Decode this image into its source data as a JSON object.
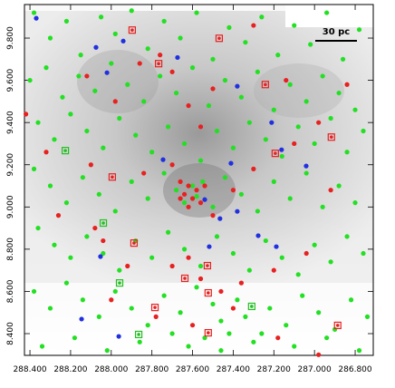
{
  "chart_data": {
    "type": "scatter",
    "annotation": "30 pc",
    "xlim": [
      288.427,
      286.711
    ],
    "ylim": [
      8.297,
      9.959
    ],
    "xticks": [
      {
        "value": 288.4,
        "label": "288.400"
      },
      {
        "value": 288.2,
        "label": "288.200"
      },
      {
        "value": 288.0,
        "label": "288.000"
      },
      {
        "value": 287.8,
        "label": "287.800"
      },
      {
        "value": 287.6,
        "label": "287.600"
      },
      {
        "value": 287.4,
        "label": "287.400"
      },
      {
        "value": 287.2,
        "label": "287.200"
      },
      {
        "value": 287.0,
        "label": "287.000"
      },
      {
        "value": 286.8,
        "label": "286.800"
      }
    ],
    "yticks": [
      {
        "value": 8.4,
        "label": "8.400"
      },
      {
        "value": 8.6,
        "label": "8.600"
      },
      {
        "value": 8.8,
        "label": "8.800"
      },
      {
        "value": 9.0,
        "label": "9.000"
      },
      {
        "value": 9.2,
        "label": "9.200"
      },
      {
        "value": 9.4,
        "label": "9.400"
      },
      {
        "value": 9.6,
        "label": "9.600"
      },
      {
        "value": 9.8,
        "label": "9.800"
      }
    ],
    "series": [
      {
        "color": "#22e022",
        "marker": "circle",
        "x": [
          288.38,
          288.3,
          288.22,
          288.15,
          288.05,
          287.98,
          287.9,
          287.82,
          287.74,
          287.66,
          287.58,
          287.5,
          287.42,
          287.34,
          287.26,
          287.18,
          287.1,
          287.02,
          286.94,
          286.86,
          286.78,
          288.4,
          288.32,
          288.24,
          288.16,
          288.08,
          288.0,
          287.92,
          287.84,
          287.76,
          287.68,
          287.6,
          287.52,
          287.44,
          287.36,
          287.28,
          287.2,
          287.12,
          287.04,
          286.96,
          286.88,
          286.8,
          288.36,
          288.28,
          288.2,
          288.12,
          288.04,
          287.96,
          287.88,
          287.8,
          287.72,
          287.64,
          287.56,
          287.48,
          287.4,
          287.32,
          287.24,
          287.16,
          287.08,
          287.0,
          286.92,
          286.84,
          286.76,
          288.38,
          288.3,
          288.22,
          288.14,
          288.06,
          287.98,
          287.9,
          287.82,
          287.74,
          287.68,
          287.64,
          287.6,
          287.58,
          287.55,
          287.5,
          287.44,
          287.36,
          287.28,
          287.2,
          287.12,
          287.04,
          286.96,
          286.88,
          286.8,
          288.36,
          288.28,
          288.2,
          288.12,
          288.04,
          287.96,
          287.88,
          287.8,
          287.72,
          287.64,
          287.56,
          287.48,
          287.4,
          287.32,
          287.24,
          287.16,
          287.08,
          287.0,
          286.92,
          286.84,
          286.76,
          288.38,
          288.3,
          288.22,
          288.14,
          288.06,
          287.98,
          287.9,
          287.82,
          287.74,
          287.66,
          287.58,
          287.5,
          287.46,
          287.42,
          287.38,
          287.34,
          287.3,
          287.22,
          287.14,
          287.06,
          286.98,
          286.9,
          286.82,
          286.74,
          288.34,
          288.18,
          288.02,
          287.86,
          287.7,
          287.62,
          287.54,
          287.46,
          287.26,
          287.1,
          286.94,
          286.78
        ],
        "y": [
          9.92,
          9.8,
          9.88,
          9.72,
          9.9,
          9.82,
          9.93,
          9.75,
          9.88,
          9.8,
          9.92,
          9.7,
          9.85,
          9.78,
          9.9,
          9.72,
          9.86,
          9.77,
          9.92,
          9.7,
          9.84,
          9.6,
          9.66,
          9.52,
          9.62,
          9.55,
          9.68,
          9.58,
          9.5,
          9.62,
          9.54,
          9.66,
          9.48,
          9.6,
          9.52,
          9.64,
          9.46,
          9.58,
          9.5,
          9.62,
          9.54,
          9.46,
          9.4,
          9.32,
          9.44,
          9.36,
          9.28,
          9.42,
          9.34,
          9.26,
          9.38,
          9.3,
          9.22,
          9.36,
          9.28,
          9.4,
          9.32,
          9.24,
          9.38,
          9.3,
          9.42,
          9.26,
          9.36,
          9.18,
          9.1,
          9.02,
          9.14,
          9.06,
          8.98,
          9.12,
          9.04,
          9.16,
          9.08,
          9.02,
          9.1,
          9.05,
          9.12,
          9.0,
          9.14,
          9.06,
          8.98,
          9.12,
          9.04,
          9.16,
          9.0,
          9.1,
          9.02,
          8.9,
          8.82,
          8.76,
          8.86,
          8.78,
          8.7,
          8.84,
          8.76,
          8.88,
          8.8,
          8.72,
          8.86,
          8.78,
          8.7,
          8.84,
          8.76,
          8.68,
          8.82,
          8.74,
          8.86,
          8.78,
          8.6,
          8.52,
          8.64,
          8.56,
          8.48,
          8.6,
          8.52,
          8.44,
          8.58,
          8.5,
          8.62,
          8.54,
          8.46,
          8.4,
          8.56,
          8.48,
          8.36,
          8.52,
          8.44,
          8.58,
          8.5,
          8.42,
          8.56,
          8.48,
          8.34,
          8.38,
          8.32,
          8.36,
          8.4,
          8.34,
          8.38,
          8.32,
          8.4,
          8.34,
          8.38,
          8.32
        ]
      },
      {
        "color": "#e82020",
        "marker": "circle",
        "x": [
          288.42,
          288.12,
          287.98,
          287.86,
          287.76,
          287.7,
          287.62,
          287.56,
          287.5,
          287.3,
          287.14,
          286.98,
          286.84,
          288.32,
          288.1,
          287.84,
          287.7,
          287.66,
          287.64,
          287.62,
          287.6,
          287.58,
          287.56,
          287.62,
          287.66,
          287.54,
          287.5,
          287.4,
          287.3,
          287.1,
          286.92,
          288.26,
          288.08,
          288.04,
          287.92,
          287.7,
          287.62,
          287.56,
          287.46,
          287.36,
          287.2,
          287.04,
          288.0,
          287.78,
          287.6,
          287.4,
          287.18,
          286.98
        ],
        "y": [
          9.44,
          9.62,
          9.5,
          9.68,
          9.72,
          9.64,
          9.48,
          9.38,
          9.56,
          9.86,
          9.6,
          9.4,
          9.58,
          9.26,
          9.2,
          9.16,
          9.2,
          9.12,
          9.06,
          9.1,
          9.04,
          9.08,
          9.02,
          9.0,
          9.04,
          9.1,
          8.96,
          9.08,
          9.18,
          9.3,
          9.08,
          8.96,
          8.9,
          8.84,
          8.72,
          8.72,
          8.76,
          8.66,
          8.6,
          8.64,
          8.7,
          8.78,
          8.56,
          8.48,
          8.44,
          8.52,
          8.38,
          8.3
        ]
      },
      {
        "color": "#2030e0",
        "marker": "circle",
        "x": [
          288.369,
          288.075,
          287.941,
          287.674,
          288.021,
          287.38,
          287.211,
          287.162,
          287.745,
          287.411,
          287.041,
          287.54,
          287.38,
          287.465,
          287.277,
          287.518,
          288.053,
          288.146,
          287.963,
          287.188
        ],
        "y": [
          9.894,
          9.756,
          9.786,
          9.708,
          9.636,
          9.572,
          9.4,
          9.271,
          9.224,
          9.207,
          9.194,
          9.035,
          8.979,
          8.945,
          8.864,
          8.812,
          8.765,
          8.469,
          8.387,
          8.812
        ]
      },
      {
        "color": "#e82020",
        "marker": "square",
        "x": [
          287.897,
          287.469,
          287.767,
          287.242,
          286.917,
          287.193,
          287.995,
          287.888,
          287.527,
          287.638,
          287.523,
          287.785,
          287.523,
          286.886
        ],
        "y": [
          9.838,
          9.799,
          9.679,
          9.58,
          9.331,
          9.254,
          9.142,
          8.829,
          8.722,
          8.662,
          8.593,
          8.524,
          8.404,
          8.439
        ]
      },
      {
        "color": "#22c022",
        "marker": "square",
        "x": [
          288.226,
          288.039,
          287.959,
          287.865,
          287.309
        ],
        "y": [
          9.267,
          8.924,
          8.64,
          8.396,
          8.529
        ]
      }
    ]
  }
}
